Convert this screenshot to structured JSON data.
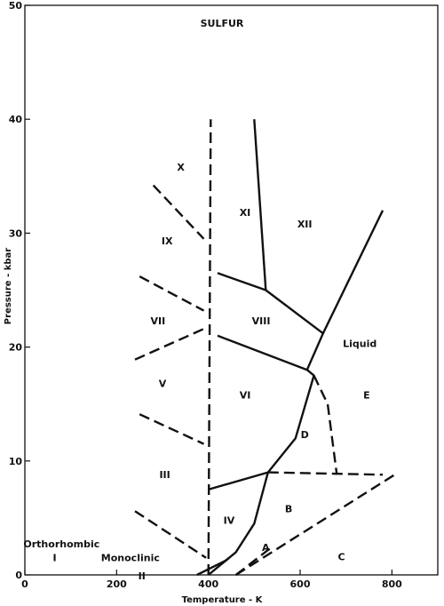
{
  "chart_data": {
    "type": "line",
    "title": "SULFUR",
    "xlabel": "Temperature - K",
    "ylabel": "Pressure - kbar",
    "xlim": [
      0,
      900
    ],
    "ylim": [
      0,
      50
    ],
    "xticks": [
      0,
      200,
      400,
      600,
      800
    ],
    "yticks": [
      0,
      10,
      20,
      30,
      40,
      50
    ],
    "grid": false,
    "boundaries": [
      {
        "style": "dashed",
        "points": [
          [
            400,
            0
          ],
          [
            405,
            40
          ]
        ]
      },
      {
        "style": "solid",
        "points": [
          [
            500,
            40
          ],
          [
            525,
            25
          ]
        ]
      },
      {
        "style": "solid",
        "points": [
          [
            420,
            26.5
          ],
          [
            525,
            25
          ],
          [
            650,
            21.2
          ],
          [
            780,
            32
          ]
        ]
      },
      {
        "style": "solid",
        "points": [
          [
            420,
            21
          ],
          [
            615,
            18
          ],
          [
            650,
            21.2
          ]
        ]
      },
      {
        "style": "solid",
        "points": [
          [
            615,
            18
          ],
          [
            630,
            17.5
          ],
          [
            590,
            12
          ],
          [
            530,
            9
          ],
          [
            500,
            4.5
          ],
          [
            460,
            2
          ],
          [
            430,
            1
          ]
        ]
      },
      {
        "style": "solid",
        "points": [
          [
            400,
            7.5
          ],
          [
            530,
            9
          ]
        ]
      },
      {
        "style": "solid",
        "points": [
          [
            375,
            0
          ],
          [
            440,
            1.3
          ]
        ]
      },
      {
        "style": "dashed",
        "points": [
          [
            530,
            9
          ],
          [
            780,
            8.8
          ]
        ]
      },
      {
        "style": "dashed",
        "points": [
          [
            630,
            17.5
          ],
          [
            660,
            15
          ],
          [
            680,
            8.8
          ]
        ]
      },
      {
        "style": "dashed",
        "points": [
          [
            460,
            0
          ],
          [
            810,
            8.9
          ]
        ]
      },
      {
        "style": "dashed",
        "points": [
          [
            460,
            0
          ],
          [
            540,
            2.5
          ]
        ]
      },
      {
        "style": "dashed",
        "points": [
          [
            280,
            34.2
          ],
          [
            390,
            29.5
          ]
        ]
      },
      {
        "style": "dashed",
        "points": [
          [
            250,
            26.2
          ],
          [
            390,
            23.2
          ]
        ]
      },
      {
        "style": "dashed",
        "points": [
          [
            240,
            18.9
          ],
          [
            390,
            21.6
          ]
        ]
      },
      {
        "style": "dashed",
        "points": [
          [
            250,
            14.1
          ],
          [
            390,
            11.5
          ]
        ]
      },
      {
        "style": "dashed",
        "points": [
          [
            240,
            5.6
          ],
          [
            395,
            1.5
          ]
        ]
      },
      {
        "style": "solid",
        "points": [
          [
            400,
            0
          ],
          [
            445,
            1.5
          ]
        ]
      }
    ],
    "regions": [
      {
        "label": "X",
        "x": 340,
        "y": 35.5
      },
      {
        "label": "XI",
        "x": 480,
        "y": 31.5
      },
      {
        "label": "XII",
        "x": 610,
        "y": 30.5
      },
      {
        "label": "IX",
        "x": 310,
        "y": 29
      },
      {
        "label": "VII",
        "x": 290,
        "y": 22
      },
      {
        "label": "VIII",
        "x": 515,
        "y": 22
      },
      {
        "label": "Liquid",
        "x": 730,
        "y": 20
      },
      {
        "label": "V",
        "x": 300,
        "y": 16.5
      },
      {
        "label": "VI",
        "x": 480,
        "y": 15.5
      },
      {
        "label": "E",
        "x": 745,
        "y": 15.5
      },
      {
        "label": "D",
        "x": 610,
        "y": 12
      },
      {
        "label": "III",
        "x": 305,
        "y": 8.5
      },
      {
        "label": "IV",
        "x": 445,
        "y": 4.5
      },
      {
        "label": "B",
        "x": 575,
        "y": 5.5
      },
      {
        "label": "Orthorhombic",
        "x": 80,
        "y": 2.4
      },
      {
        "label": "I",
        "x": 65,
        "y": 1.2
      },
      {
        "label": "Monoclinic",
        "x": 230,
        "y": 1.2
      },
      {
        "label": "II",
        "x": 255,
        "y": -0.4
      },
      {
        "label": "A",
        "x": 525,
        "y": 2.1
      },
      {
        "label": "C",
        "x": 690,
        "y": 1.3
      }
    ]
  }
}
